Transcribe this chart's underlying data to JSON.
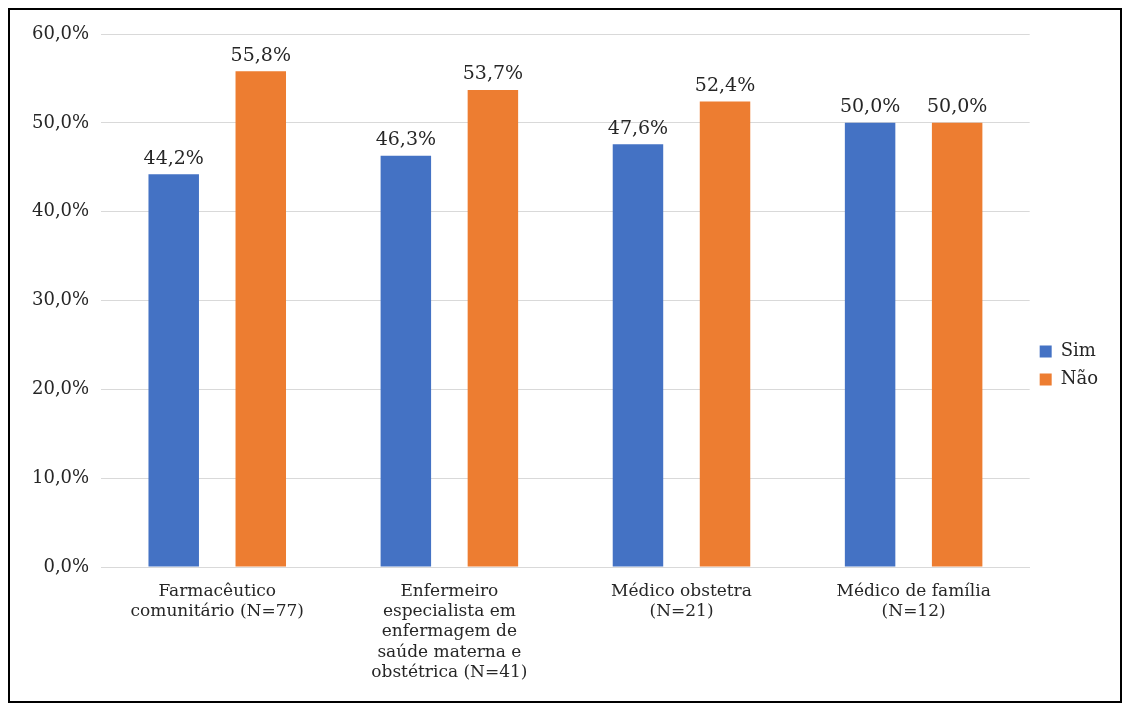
{
  "chart_data": {
    "type": "bar",
    "categories": [
      "Farmacêutico comunitário (N=77)",
      "Enfermeiro especialista em enfermagem de saúde materna e obstétrica (N=41)",
      "Médico obstetra (N=21)",
      "Médico de família (N=12)"
    ],
    "series": [
      {
        "name": "Sim",
        "color": "#4472c4",
        "values": [
          44.2,
          46.3,
          47.6,
          50.0
        ],
        "value_labels": [
          "44,2%",
          "46,3%",
          "47,6%",
          "50,0%"
        ]
      },
      {
        "name": "Não",
        "color": "#ed7d31",
        "values": [
          55.8,
          53.7,
          52.4,
          50.0
        ],
        "value_labels": [
          "55,8%",
          "53,7%",
          "52,4%",
          "50,0%"
        ]
      }
    ],
    "ylim": [
      0,
      60
    ],
    "yticks": [
      {
        "value": 0,
        "label": "0,0%"
      },
      {
        "value": 10,
        "label": "10,0%"
      },
      {
        "value": 20,
        "label": "20,0%"
      },
      {
        "value": 30,
        "label": "30,0%"
      },
      {
        "value": 40,
        "label": "40,0%"
      },
      {
        "value": 50,
        "label": "50,0%"
      },
      {
        "value": 60,
        "label": "60,0%"
      }
    ],
    "grid": "y",
    "legend": "right"
  }
}
